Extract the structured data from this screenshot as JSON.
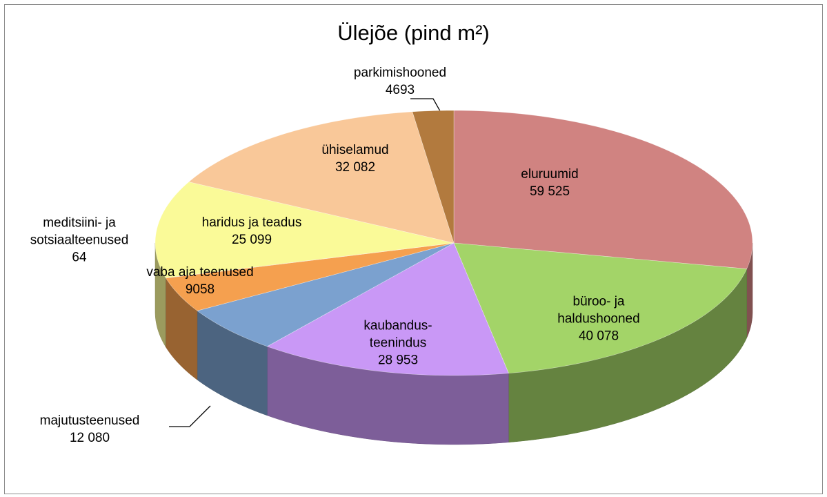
{
  "chart_data": {
    "type": "pie3d",
    "title": "Ülejõe (pind m²)",
    "categories": [
      "eluruumid",
      "büroo- ja haldushooned",
      "kaubandus-teenindus",
      "majutusteenused",
      "vaba aja teenused",
      "meditsiini- ja sotsiaalteenused",
      "haridus ja teadus",
      "ühiselamud",
      "parkimishooned"
    ],
    "values": [
      59525,
      40078,
      28953,
      12080,
      9058,
      64,
      25099,
      32082,
      4693
    ],
    "value_labels": [
      "59 525",
      "40 078",
      "28 953",
      "12 080",
      "9058",
      "64",
      "25 099",
      "32 082",
      "4693"
    ],
    "colors": [
      "#d08381",
      "#a3d468",
      "#c998f6",
      "#7ba1cf",
      "#f5a04f",
      "#c0504d",
      "#fafa98",
      "#f9c899",
      "#b27a3e"
    ]
  }
}
